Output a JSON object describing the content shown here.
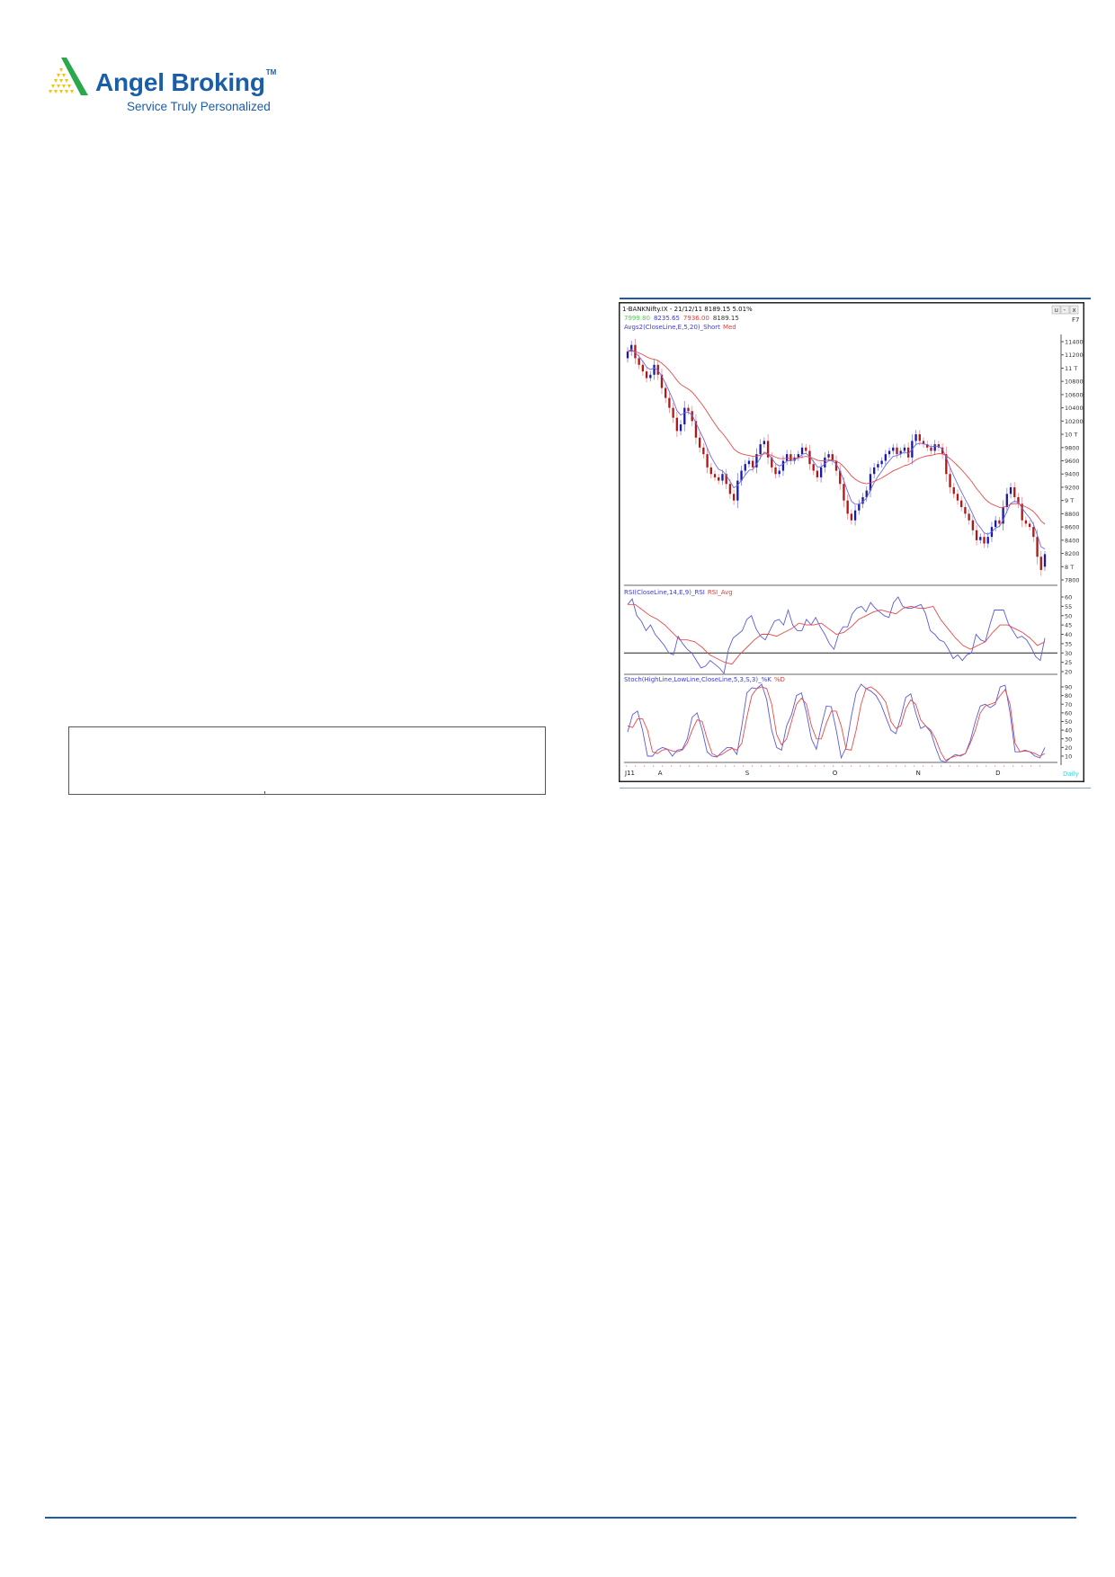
{
  "logo": {
    "name": "Angel Broking",
    "tm": "TM",
    "tagline": "Service Truly Personalized"
  },
  "colors": {
    "brand_blue": "#1a5ea8",
    "logo_green": "#2aa84a",
    "logo_yellow": "#f5c400",
    "bull_candle": "#1a1aa8",
    "bear_candle": "#b01818",
    "ema_short": "#6a6ae8",
    "ema_med": "#e84a4a",
    "rsi": "#5a5ae0",
    "rsi_avg": "#e84a4a",
    "stoch_k": "#5a5ae0",
    "stoch_d": "#e84a4a"
  },
  "chart_window": {
    "title": "1-BANKNifty.IX - 21/12/11 8189.15 5.01%",
    "ohlc": {
      "open": "7999.80",
      "high": "8235.65",
      "low": "7936.00",
      "close": "8189.15"
    },
    "buttons": [
      "u",
      "-",
      "x"
    ],
    "shortcut": "F7",
    "timeframe": "Daily"
  },
  "chart_data": [
    {
      "type": "candlestick",
      "panel": "price",
      "legend": {
        "label": "Avgs2(CloseLine,E,5,20)_Short",
        "label2": "Med"
      },
      "y_tick_labels": [
        "11400",
        "11200",
        "11 T",
        "10800",
        "10600",
        "10400",
        "10200",
        "10 T",
        "9800",
        "9600",
        "9400",
        "9200",
        "9 T",
        "8800",
        "8600",
        "8400",
        "8200",
        "8 T",
        "7800"
      ],
      "y_tick_values": [
        11400,
        11200,
        11000,
        10800,
        10600,
        10400,
        10200,
        10000,
        9800,
        9600,
        9400,
        9200,
        9000,
        8800,
        8600,
        8400,
        8200,
        8000,
        7800
      ],
      "ylim": [
        7750,
        11500
      ],
      "first_open": 11150,
      "close": [
        11250,
        11350,
        11150,
        11050,
        10950,
        10850,
        10900,
        11050,
        10900,
        10700,
        10550,
        10400,
        10250,
        10050,
        10150,
        10400,
        10350,
        10200,
        9950,
        9800,
        9700,
        9500,
        9400,
        9350,
        9300,
        9400,
        9250,
        9100,
        9000,
        9300,
        9450,
        9550,
        9600,
        9500,
        9700,
        9850,
        9900,
        9650,
        9500,
        9400,
        9450,
        9600,
        9700,
        9600,
        9650,
        9700,
        9800,
        9750,
        9550,
        9450,
        9350,
        9500,
        9650,
        9700,
        9600,
        9450,
        9250,
        9000,
        8800,
        8700,
        8850,
        8950,
        9050,
        9150,
        9400,
        9500,
        9550,
        9600,
        9700,
        9750,
        9800,
        9700,
        9750,
        9800,
        9650,
        9900,
        10000,
        9900,
        9850,
        9800,
        9750,
        9850,
        9800,
        9700,
        9400,
        9200,
        9100,
        9000,
        8900,
        8800,
        8700,
        8550,
        8400,
        8450,
        8350,
        8450,
        8600,
        8700,
        8650,
        8900,
        9100,
        9200,
        9050,
        8950,
        8700,
        8650,
        8600,
        8450,
        8150,
        7950,
        8189.15
      ],
      "ema_periods": [
        5,
        20
      ],
      "x_labels": [
        {
          "label": "J11",
          "index": 0
        },
        {
          "label": "A",
          "index": 8
        },
        {
          "label": "S",
          "index": 31
        },
        {
          "label": "O",
          "index": 54
        },
        {
          "label": "N",
          "index": 76
        },
        {
          "label": "D",
          "index": 97
        }
      ]
    },
    {
      "type": "line",
      "panel": "rsi",
      "legend": {
        "label": "RSI(CloseLine,14,E,9)_RSI",
        "label2": "RSI_Avg"
      },
      "y_tick_labels": [
        "60",
        "55",
        "50",
        "45",
        "40",
        "35",
        "30",
        "25",
        "20"
      ],
      "ylim": [
        20,
        60
      ],
      "reference_line": 30,
      "series": [
        {
          "name": "RSI",
          "values": [
            56,
            59,
            50,
            47,
            42,
            45,
            40,
            37,
            34,
            30,
            29,
            39,
            35,
            32,
            30,
            26,
            22,
            23,
            26,
            24,
            22,
            19,
            32,
            38,
            40,
            42,
            48,
            50,
            43,
            39,
            37,
            42,
            47,
            48,
            45,
            53,
            45,
            42,
            42,
            48,
            45,
            49,
            44,
            40,
            35,
            32,
            40,
            44,
            44,
            51,
            54,
            55,
            52,
            57,
            54,
            52,
            50,
            49,
            57,
            60,
            55,
            54,
            54,
            55,
            56,
            51,
            42,
            40,
            37,
            36,
            32,
            27,
            29,
            26,
            29,
            30,
            40,
            37,
            36,
            45,
            53,
            53,
            53,
            46,
            42,
            38,
            39,
            37,
            33,
            28,
            26,
            38
          ]
        },
        {
          "name": "RSI_Avg",
          "values": [
            56,
            56,
            53,
            50,
            48,
            45,
            41,
            37,
            37,
            36,
            33,
            29,
            27,
            25,
            24,
            29,
            33,
            37,
            40,
            40,
            39,
            41,
            43,
            46,
            45,
            45,
            46,
            43,
            40,
            41,
            44,
            48,
            50,
            52,
            53,
            52,
            51,
            54,
            55,
            54,
            54,
            55,
            48,
            43,
            38,
            34,
            32,
            34,
            36,
            41,
            45,
            45,
            43,
            41,
            38,
            34,
            36
          ]
        }
      ]
    },
    {
      "type": "line",
      "panel": "stochastic",
      "legend": {
        "label": "Stoch(HighLine,LowLine,CloseLine,5,3,S,3)_%K",
        "label2": "%D"
      },
      "y_tick_labels": [
        "90",
        "80",
        "70",
        "60",
        "50",
        "40",
        "30",
        "20",
        "10"
      ],
      "ylim": [
        2,
        95
      ],
      "series": [
        {
          "name": "%K",
          "values": [
            38,
            58,
            62,
            40,
            10,
            10,
            17,
            20,
            18,
            10,
            17,
            18,
            30,
            55,
            60,
            40,
            15,
            10,
            9,
            15,
            20,
            20,
            12,
            45,
            83,
            89,
            88,
            93,
            75,
            40,
            20,
            17,
            45,
            58,
            80,
            83,
            60,
            30,
            18,
            45,
            68,
            67,
            40,
            8,
            20,
            55,
            83,
            93,
            88,
            85,
            80,
            70,
            55,
            40,
            36,
            55,
            78,
            82,
            60,
            42,
            45,
            38,
            20,
            5,
            3,
            8,
            12,
            10,
            13,
            28,
            50,
            68,
            70,
            66,
            70,
            90,
            92,
            60,
            15,
            15,
            17,
            15,
            10,
            8,
            20
          ]
        },
        {
          "name": "%D",
          "values": [
            45,
            43,
            53,
            53,
            40,
            15,
            13,
            17,
            18,
            16,
            15,
            17,
            25,
            40,
            52,
            50,
            30,
            13,
            10,
            12,
            16,
            19,
            17,
            25,
            55,
            80,
            88,
            90,
            88,
            70,
            35,
            23,
            30,
            50,
            70,
            77,
            70,
            45,
            30,
            30,
            48,
            62,
            62,
            45,
            18,
            17,
            40,
            70,
            88,
            90,
            86,
            80,
            72,
            50,
            42,
            45,
            65,
            75,
            70,
            52,
            45,
            40,
            30,
            15,
            5,
            8,
            10,
            11,
            13,
            25,
            40,
            60,
            68,
            70,
            72,
            80,
            87,
            70,
            25,
            15,
            16,
            15,
            13,
            10,
            13
          ]
        }
      ]
    }
  ]
}
